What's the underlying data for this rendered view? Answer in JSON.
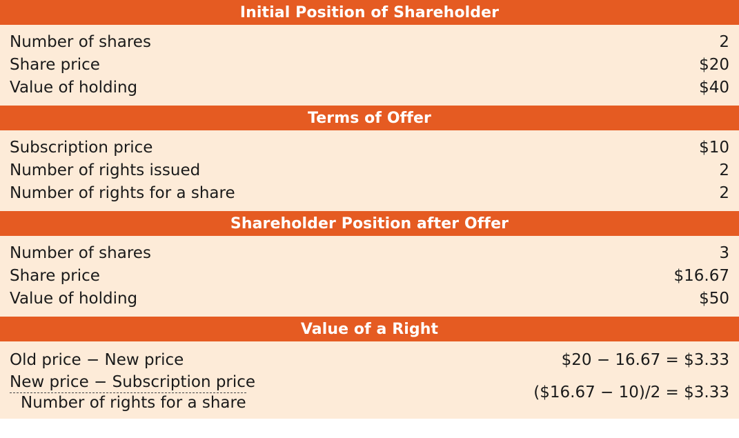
{
  "sections": [
    {
      "title": "Initial Position of Shareholder",
      "rows": [
        {
          "label": "Number of shares",
          "value": "2"
        },
        {
          "label": "Share price",
          "value": "$20"
        },
        {
          "label": "Value of holding",
          "value": "$40"
        }
      ]
    },
    {
      "title": "Terms of Offer",
      "rows": [
        {
          "label": "Subscription price",
          "value": "$10"
        },
        {
          "label": "Number of rights issued",
          "value": "2"
        },
        {
          "label": "Number of rights for a share",
          "value": "2"
        }
      ]
    },
    {
      "title": "Shareholder Position after Offer",
      "rows": [
        {
          "label": "Number of shares",
          "value": "3"
        },
        {
          "label": "Share price",
          "value": "$16.67"
        },
        {
          "label": "Value of holding",
          "value": "$50"
        }
      ]
    },
    {
      "title": "Value of a Right",
      "rows": [
        {
          "label": "Old price − New price",
          "value": "$20 − 16.67 = $3.33"
        }
      ],
      "fraction": {
        "numerator": "New price − Subscription price",
        "denominator": "Number of rights for a share",
        "value": "($16.67 − 10)/2 = $3.33"
      }
    }
  ],
  "colors": {
    "header_background": "#e55b22",
    "header_text": "#ffffff",
    "body_background": "#fdebd8"
  }
}
